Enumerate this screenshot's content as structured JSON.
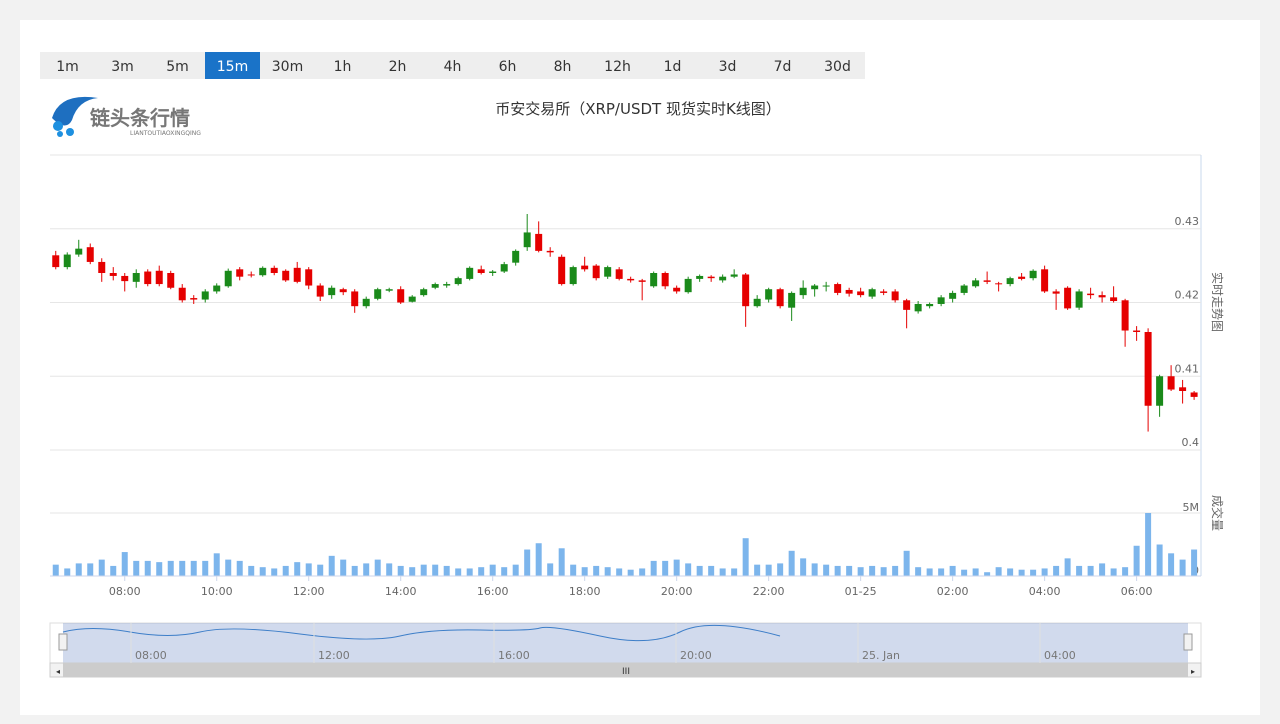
{
  "tabs": [
    "1m",
    "3m",
    "5m",
    "15m",
    "30m",
    "1h",
    "2h",
    "4h",
    "6h",
    "8h",
    "12h",
    "1d",
    "3d",
    "7d",
    "30d"
  ],
  "active_tab": "15m",
  "logo": {
    "name": "链头条行情",
    "pinyin": "LIANTOUTIAOXINGQING"
  },
  "chart_data": {
    "type": "candlestick",
    "title": "币安交易所（XRP/USDT 现货实时K线图）",
    "open": [
      0.4264,
      0.4248,
      0.4265,
      0.4275,
      0.4255,
      0.424,
      0.4236,
      0.4228,
      0.4242,
      0.4243,
      0.424,
      0.422,
      0.4206,
      0.4204,
      0.4215,
      0.4222,
      0.4245,
      0.4238,
      0.4237,
      0.4247,
      0.4243,
      0.4247,
      0.4245,
      0.4223,
      0.421,
      0.4218,
      0.4215,
      0.4195,
      0.4205,
      0.4216,
      0.4218,
      0.4201,
      0.421,
      0.422,
      0.4223,
      0.4225,
      0.4232,
      0.4245,
      0.424,
      0.4242,
      0.4254,
      0.4275,
      0.4293,
      0.427,
      0.4262,
      0.4225,
      0.425,
      0.425,
      0.4235,
      0.4245,
      0.4232,
      0.423,
      0.4222,
      0.424,
      0.422,
      0.4214,
      0.4232,
      0.4235,
      0.423,
      0.4235,
      0.4238,
      0.4195,
      0.4204,
      0.4218,
      0.4193,
      0.421,
      0.4218,
      0.4222,
      0.4225,
      0.4217,
      0.4215,
      0.4208,
      0.4215,
      0.4215,
      0.4203,
      0.4188,
      0.4195,
      0.4198,
      0.4205,
      0.4213,
      0.4222,
      0.423,
      0.4226,
      0.4225,
      0.4235,
      0.4233,
      0.4245,
      0.4215,
      0.422,
      0.4193,
      0.4212,
      0.421,
      0.4207,
      0.4203,
      0.4162,
      0.416,
      0.406,
      0.41,
      0.4085,
      0.4078
    ],
    "high": [
      0.427,
      0.4268,
      0.4285,
      0.428,
      0.426,
      0.4248,
      0.424,
      0.4245,
      0.4245,
      0.425,
      0.4243,
      0.4225,
      0.421,
      0.4218,
      0.4226,
      0.4246,
      0.4248,
      0.4242,
      0.4249,
      0.425,
      0.4245,
      0.4255,
      0.4248,
      0.4226,
      0.4223,
      0.422,
      0.4218,
      0.4208,
      0.422,
      0.422,
      0.4222,
      0.421,
      0.422,
      0.4227,
      0.4228,
      0.4235,
      0.4249,
      0.425,
      0.4244,
      0.4255,
      0.4272,
      0.432,
      0.431,
      0.4275,
      0.4265,
      0.425,
      0.4262,
      0.4252,
      0.425,
      0.4248,
      0.4235,
      0.4232,
      0.4242,
      0.4242,
      0.4223,
      0.4235,
      0.4238,
      0.4237,
      0.4238,
      0.4245,
      0.424,
      0.421,
      0.422,
      0.422,
      0.4215,
      0.423,
      0.4225,
      0.4228,
      0.4227,
      0.422,
      0.422,
      0.422,
      0.4218,
      0.4218,
      0.4205,
      0.4202,
      0.42,
      0.421,
      0.4216,
      0.4225,
      0.4233,
      0.4242,
      0.4228,
      0.4235,
      0.424,
      0.4245,
      0.425,
      0.4218,
      0.4222,
      0.4218,
      0.422,
      0.4215,
      0.4222,
      0.4205,
      0.4168,
      0.4165,
      0.4102,
      0.4115,
      0.4095,
      0.408
    ],
    "low": [
      0.4245,
      0.4245,
      0.4262,
      0.4252,
      0.4228,
      0.423,
      0.4215,
      0.422,
      0.4222,
      0.4222,
      0.4218,
      0.42,
      0.4198,
      0.42,
      0.4212,
      0.422,
      0.423,
      0.4234,
      0.4235,
      0.4237,
      0.4228,
      0.4226,
      0.4218,
      0.4202,
      0.4205,
      0.421,
      0.4186,
      0.4192,
      0.4203,
      0.4214,
      0.4198,
      0.42,
      0.4208,
      0.4218,
      0.422,
      0.4223,
      0.423,
      0.4238,
      0.4236,
      0.424,
      0.425,
      0.427,
      0.4268,
      0.4262,
      0.4223,
      0.4223,
      0.4242,
      0.423,
      0.4232,
      0.423,
      0.4227,
      0.4203,
      0.422,
      0.4218,
      0.4212,
      0.4212,
      0.4228,
      0.4228,
      0.4227,
      0.4233,
      0.4167,
      0.4193,
      0.42,
      0.4192,
      0.4175,
      0.4205,
      0.4208,
      0.4215,
      0.421,
      0.4208,
      0.4207,
      0.4205,
      0.421,
      0.42,
      0.4165,
      0.4185,
      0.4192,
      0.4195,
      0.42,
      0.421,
      0.422,
      0.4225,
      0.4215,
      0.4222,
      0.423,
      0.423,
      0.4213,
      0.419,
      0.419,
      0.419,
      0.4205,
      0.42,
      0.42,
      0.414,
      0.4148,
      0.4025,
      0.4045,
      0.408,
      0.4063,
      0.4068
    ],
    "close": [
      0.4248,
      0.4265,
      0.4273,
      0.4255,
      0.424,
      0.4236,
      0.4229,
      0.424,
      0.4225,
      0.4225,
      0.422,
      0.4203,
      0.4204,
      0.4215,
      0.4223,
      0.4243,
      0.4235,
      0.4237,
      0.4247,
      0.424,
      0.423,
      0.4228,
      0.4223,
      0.4208,
      0.422,
      0.4214,
      0.4195,
      0.4205,
      0.4218,
      0.4218,
      0.42,
      0.4208,
      0.4218,
      0.4225,
      0.4225,
      0.4233,
      0.4247,
      0.424,
      0.4242,
      0.4252,
      0.427,
      0.4295,
      0.427,
      0.4268,
      0.4225,
      0.4248,
      0.4245,
      0.4233,
      0.4248,
      0.4232,
      0.423,
      0.4228,
      0.424,
      0.4222,
      0.4215,
      0.4232,
      0.4236,
      0.4233,
      0.4235,
      0.4238,
      0.4195,
      0.4205,
      0.4218,
      0.4195,
      0.4213,
      0.422,
      0.4223,
      0.4223,
      0.4213,
      0.4212,
      0.421,
      0.4218,
      0.4213,
      0.4203,
      0.419,
      0.4198,
      0.4198,
      0.4207,
      0.4213,
      0.4223,
      0.423,
      0.4228,
      0.4225,
      0.4233,
      0.4232,
      0.4243,
      0.4215,
      0.4212,
      0.4192,
      0.4215,
      0.421,
      0.4207,
      0.4202,
      0.4162,
      0.416,
      0.406,
      0.41,
      0.4082,
      0.408,
      0.4072
    ],
    "up_color": "#1a8a1a",
    "down_color": "#e50000",
    "xlim": [
      -0.5,
      99.6
    ],
    "xticks": [
      {
        "value": 6,
        "label": "08:00"
      },
      {
        "value": 14,
        "label": "10:00"
      },
      {
        "value": 22,
        "label": "12:00"
      },
      {
        "value": 30,
        "label": "14:00"
      },
      {
        "value": 38,
        "label": "16:00"
      },
      {
        "value": 46,
        "label": "18:00"
      },
      {
        "value": 54,
        "label": "20:00"
      },
      {
        "value": 62,
        "label": "22:00"
      },
      {
        "value": 70,
        "label": "01-25"
      },
      {
        "value": 78,
        "label": "02:00"
      },
      {
        "value": 86,
        "label": "04:00"
      },
      {
        "value": 94,
        "label": "06:00"
      }
    ],
    "ylim": [
      0.4,
      0.44
    ],
    "yticks": [
      0.4,
      0.41,
      0.42,
      0.43
    ],
    "y_label": "实时走势图",
    "volume": {
      "label": "成交量",
      "color": "#7cb5ec",
      "ylim": [
        0,
        5000000
      ],
      "yticks": [
        0,
        {
          "value": 5000000,
          "label": "5M"
        }
      ],
      "values": [
        900000,
        600000,
        1000000,
        1000000,
        1300000,
        800000,
        1900000,
        1200000,
        1200000,
        1100000,
        1200000,
        1200000,
        1200000,
        1200000,
        1800000,
        1300000,
        1200000,
        800000,
        700000,
        600000,
        800000,
        1100000,
        1000000,
        900000,
        1600000,
        1300000,
        800000,
        1000000,
        1300000,
        1000000,
        800000,
        700000,
        900000,
        900000,
        800000,
        600000,
        600000,
        700000,
        900000,
        700000,
        900000,
        2100000,
        2600000,
        1000000,
        2200000,
        900000,
        700000,
        800000,
        700000,
        600000,
        500000,
        600000,
        1200000,
        1200000,
        1300000,
        1000000,
        800000,
        800000,
        600000,
        600000,
        3000000,
        900000,
        900000,
        1000000,
        2000000,
        1400000,
        1000000,
        900000,
        800000,
        800000,
        700000,
        800000,
        700000,
        800000,
        2000000,
        700000,
        600000,
        600000,
        800000,
        500000,
        600000,
        300000,
        700000,
        600000,
        500000,
        500000,
        600000,
        800000,
        1400000,
        800000,
        800000,
        1000000,
        600000,
        700000,
        2400000,
        5000000,
        2500000,
        1800000,
        1300000,
        2100000
      ]
    }
  },
  "navigator": {
    "labels": [
      "08:00",
      "12:00",
      "16:00",
      "20:00",
      "25. Jan",
      "04:00"
    ]
  }
}
